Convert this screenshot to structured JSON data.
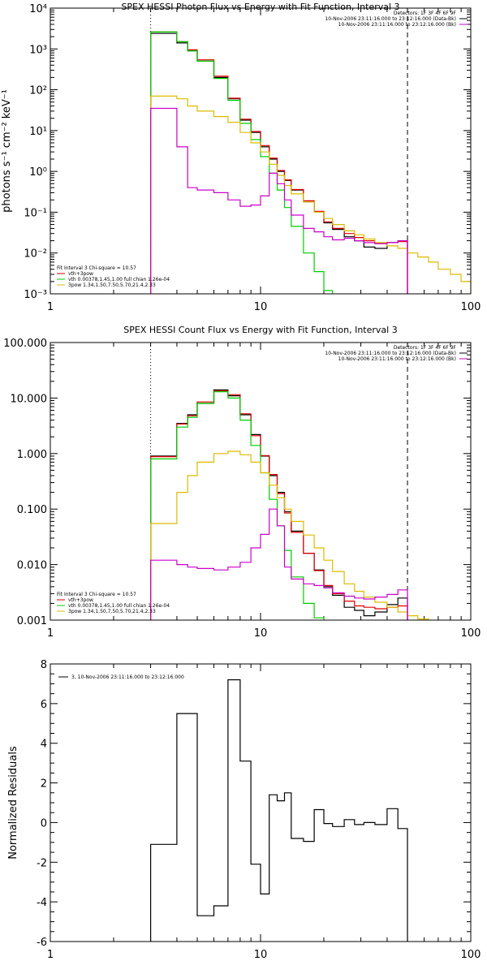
{
  "chart_data": [
    {
      "type": "line",
      "title": "SPEX HESSI Photon Flux vs Energy with Fit Function, Interval 3",
      "ylabel": "photons s⁻¹ cm⁻² keV⁻¹",
      "xlabel": "",
      "x_scale": "log",
      "y_scale": "log",
      "xlim": [
        1,
        100
      ],
      "ylim": [
        0.001,
        10000
      ],
      "x_ticks": [
        {
          "v": 1,
          "label": "1"
        },
        {
          "v": 10,
          "label": "10"
        },
        {
          "v": 100,
          "label": "100"
        }
      ],
      "y_ticks": [
        {
          "v": 0.001,
          "label": "10⁻³"
        },
        {
          "v": 0.01,
          "label": "10⁻²"
        },
        {
          "v": 0.1,
          "label": "10⁻¹"
        },
        {
          "v": 1,
          "label": "10⁰"
        },
        {
          "v": 10,
          "label": "10¹"
        },
        {
          "v": 100,
          "label": "10²"
        },
        {
          "v": 1000,
          "label": "10³"
        },
        {
          "v": 10000,
          "label": "10⁴"
        }
      ],
      "vlines": [
        {
          "x": 3,
          "style": "dotted"
        },
        {
          "x": 50,
          "style": "dashed"
        }
      ],
      "legend_top_right": [
        {
          "text": "Detectors: 1F 3F 4F 6F 9F",
          "color": "#000000",
          "line": false
        },
        {
          "text": "10-Nov-2006 23:11:16.000 to 23:12:16.000 (Data-Bk)",
          "color": "#000000",
          "line": true
        },
        {
          "text": "10-Nov-2006 23:11:16.000 to 23:12:16.000 (Bk)",
          "color": "#cc00cc",
          "line": true
        }
      ],
      "legend_bottom_left": [
        {
          "text": "Fit Interval 3   Chi-square = 10.57",
          "color": "#000000",
          "line": false
        },
        {
          "text": "vth+3pow",
          "color": "#dd0000",
          "line": true
        },
        {
          "text": "vth 0.00378,1.45,1.00  full chian 1.26e-04",
          "color": "#00cc00",
          "line": true
        },
        {
          "text": "3pow 1.34,1.50,7.50,5.70,21.4,2.33",
          "color": "#ddbb00",
          "line": true
        }
      ],
      "edges": [
        3,
        3.4,
        4,
        4.5,
        5,
        6,
        7,
        8,
        9,
        10,
        11,
        12,
        13,
        14,
        16,
        18,
        20,
        22,
        25,
        28,
        31,
        35,
        40,
        45,
        50,
        56,
        63,
        70,
        80,
        90,
        100
      ],
      "series": [
        {
          "name": "Data-Bk",
          "color": "#000000",
          "values": [
            2400,
            2400,
            1400,
            900,
            500,
            200,
            60,
            18,
            9,
            4,
            2,
            1,
            0.6,
            0.35,
            0.18,
            0.1,
            0.055,
            0.038,
            0.025,
            0.02,
            0.014,
            0.013,
            0.018,
            0.02,
            null,
            null,
            null,
            null,
            null,
            null
          ]
        },
        {
          "name": "vth+3pow",
          "color": "#dd0000",
          "values": [
            2600,
            2600,
            1500,
            950,
            540,
            215,
            62,
            19,
            9.5,
            4.3,
            2.1,
            1.05,
            0.62,
            0.36,
            0.19,
            0.105,
            0.058,
            0.04,
            0.03,
            0.024,
            0.02,
            0.017,
            0.018,
            0.019,
            null,
            null,
            null,
            null,
            null,
            null
          ]
        },
        {
          "name": "vth",
          "color": "#00cc00",
          "values": [
            2600,
            2600,
            1500,
            900,
            500,
            190,
            55,
            15,
            6,
            2.3,
            0.9,
            0.35,
            0.13,
            0.045,
            0.01,
            0.0035,
            0.0012,
            0.0009,
            null,
            null,
            null,
            null,
            null,
            null,
            null,
            null,
            null,
            null,
            null,
            null
          ]
        },
        {
          "name": "3pow",
          "color": "#ddbb00",
          "values": [
            70,
            70,
            60,
            40,
            30,
            22,
            16,
            9,
            5,
            3,
            1.5,
            0.8,
            0.45,
            0.28,
            0.18,
            0.1,
            0.07,
            0.05,
            0.035,
            0.028,
            0.022,
            0.018,
            0.015,
            0.013,
            0.01,
            0.008,
            0.006,
            0.004,
            0.003,
            0.002
          ]
        },
        {
          "name": "Bk",
          "color": "#cc00cc",
          "values": [
            35,
            35,
            4,
            0.4,
            0.35,
            0.3,
            0.2,
            0.14,
            0.15,
            0.25,
            0.9,
            0.5,
            0.2,
            0.085,
            0.04,
            0.033,
            0.025,
            0.021,
            0.023,
            0.02,
            0.018,
            0.017,
            0.018,
            0.02,
            null,
            null,
            null,
            null,
            null,
            null
          ]
        }
      ]
    },
    {
      "type": "line",
      "title": "SPEX HESSI Count Flux vs Energy with Fit Function, Interval 3",
      "ylabel": "",
      "xlabel": "",
      "x_scale": "log",
      "y_scale": "log",
      "xlim": [
        1,
        100
      ],
      "ylim": [
        0.001,
        100
      ],
      "x_ticks": [
        {
          "v": 1,
          "label": "1"
        },
        {
          "v": 10,
          "label": "10"
        },
        {
          "v": 100,
          "label": "100"
        }
      ],
      "y_ticks": [
        {
          "v": 0.001,
          "label": "0.001"
        },
        {
          "v": 0.01,
          "label": "0.010"
        },
        {
          "v": 0.1,
          "label": "0.100"
        },
        {
          "v": 1,
          "label": "1.000"
        },
        {
          "v": 10,
          "label": "10.000"
        },
        {
          "v": 100,
          "label": "100.000"
        }
      ],
      "vlines": [
        {
          "x": 3,
          "style": "dotted"
        },
        {
          "x": 50,
          "style": "dashed"
        }
      ],
      "legend_top_right": [
        {
          "text": "Detectors: 1F 3F 4F 6F 9F",
          "color": "#000000",
          "line": false
        },
        {
          "text": "10-Nov-2006 23:11:16.000 to 23:12:16.000 (Data-Bk)",
          "color": "#000000",
          "line": true
        },
        {
          "text": "10-Nov-2006 23:11:16.000 to 23:12:16.000 (Bk)",
          "color": "#cc00cc",
          "line": true
        }
      ],
      "legend_bottom_left": [
        {
          "text": "Fit Interval 3   Chi-square = 10.57",
          "color": "#000000",
          "line": false
        },
        {
          "text": "vth+3pow",
          "color": "#dd0000",
          "line": true
        },
        {
          "text": "vth 0.00378,1.45,1.00  full chian 1.26e-04",
          "color": "#00cc00",
          "line": true
        },
        {
          "text": "3pow 1.34,1.50,7.50,5.70,21.4,2.33",
          "color": "#ddbb00",
          "line": true
        }
      ],
      "edges": [
        3,
        3.4,
        4,
        4.5,
        5,
        6,
        7,
        8,
        9,
        10,
        11,
        12,
        13,
        14,
        16,
        18,
        20,
        22,
        25,
        28,
        31,
        35,
        40,
        45,
        50,
        56,
        63,
        70,
        80,
        90,
        100
      ],
      "series": [
        {
          "name": "Data-Bk",
          "color": "#000000",
          "values": [
            0.9,
            0.9,
            3.5,
            5,
            8,
            14,
            11,
            5,
            2.2,
            0.9,
            0.4,
            0.2,
            0.09,
            0.04,
            0.016,
            0.008,
            0.004,
            0.0028,
            0.0017,
            0.0015,
            0.0012,
            0.0014,
            0.0019,
            0.0025,
            null,
            null,
            null,
            null,
            null,
            null
          ]
        },
        {
          "name": "vth+3pow",
          "color": "#dd0000",
          "values": [
            0.88,
            0.88,
            3.4,
            4.8,
            8.5,
            13.5,
            11.5,
            5.2,
            2.1,
            0.92,
            0.42,
            0.19,
            0.085,
            0.038,
            0.016,
            0.0078,
            0.0042,
            0.003,
            0.0022,
            0.0018,
            0.0017,
            0.0016,
            0.0017,
            0.0018,
            null,
            null,
            null,
            null,
            null,
            null
          ]
        },
        {
          "name": "vth",
          "color": "#00cc00",
          "values": [
            0.8,
            0.8,
            3,
            4.5,
            8,
            13,
            10,
            4,
            1.4,
            0.45,
            0.15,
            0.05,
            0.018,
            0.006,
            0.002,
            0.0011,
            null,
            null,
            null,
            null,
            null,
            null,
            null,
            null,
            null,
            null,
            null,
            null,
            null,
            null
          ]
        },
        {
          "name": "3pow",
          "color": "#ddbb00",
          "values": [
            0.055,
            0.055,
            0.2,
            0.4,
            0.7,
            1.0,
            1.1,
            0.95,
            0.7,
            0.45,
            0.27,
            0.16,
            0.1,
            0.06,
            0.034,
            0.02,
            0.012,
            0.0075,
            0.0045,
            0.0033,
            0.0026,
            0.0021,
            0.0017,
            0.0014,
            0.0012,
            0.00105,
            null,
            null,
            null,
            null
          ]
        },
        {
          "name": "Bk",
          "color": "#cc00cc",
          "values": [
            0.012,
            0.012,
            0.01,
            0.009,
            0.0085,
            0.008,
            0.009,
            0.011,
            0.02,
            0.035,
            0.1,
            0.05,
            0.009,
            0.0055,
            0.0045,
            0.0042,
            0.0038,
            0.0031,
            0.0027,
            0.0025,
            0.0024,
            0.0026,
            0.0029,
            0.0035,
            null,
            null,
            null,
            null,
            null,
            null
          ]
        }
      ]
    },
    {
      "type": "line",
      "title": "",
      "ylabel": "Normalized Residuals",
      "xlabel": "",
      "x_scale": "log",
      "y_scale": "linear",
      "xlim": [
        1,
        100
      ],
      "ylim": [
        -6,
        8
      ],
      "x_ticks": [
        {
          "v": 1,
          "label": "1"
        },
        {
          "v": 10,
          "label": "10"
        },
        {
          "v": 100,
          "label": "100"
        }
      ],
      "y_ticks": [
        {
          "v": -6,
          "label": "-6"
        },
        {
          "v": -4,
          "label": "-4"
        },
        {
          "v": -2,
          "label": "-2"
        },
        {
          "v": 0,
          "label": "0"
        },
        {
          "v": 2,
          "label": "2"
        },
        {
          "v": 4,
          "label": "4"
        },
        {
          "v": 6,
          "label": "6"
        },
        {
          "v": 8,
          "label": "8"
        }
      ],
      "vlines": [],
      "legend_top_right": [],
      "legend_bottom_left": [],
      "legend_top_left": [
        {
          "text": "3, 10-Nov-2006 23:11:16.000 to 23:12:16.000",
          "color": "#000000",
          "line": true
        }
      ],
      "edges": [
        3,
        3.4,
        4,
        4.5,
        5,
        6,
        7,
        8,
        9,
        10,
        11,
        12,
        13,
        14,
        16,
        18,
        20,
        22,
        25,
        28,
        31,
        35,
        40,
        45,
        50
      ],
      "series": [
        {
          "name": "",
          "color": "#000000",
          "values": [
            -1.1,
            -1.1,
            5.5,
            5.5,
            -4.7,
            -4.2,
            7.2,
            3.1,
            -2.1,
            -3.6,
            1.4,
            1.1,
            1.5,
            -0.8,
            -0.95,
            0.65,
            -0.05,
            -0.2,
            0.15,
            -0.1,
            0.0,
            -0.1,
            0.7,
            -0.3
          ]
        }
      ]
    }
  ]
}
